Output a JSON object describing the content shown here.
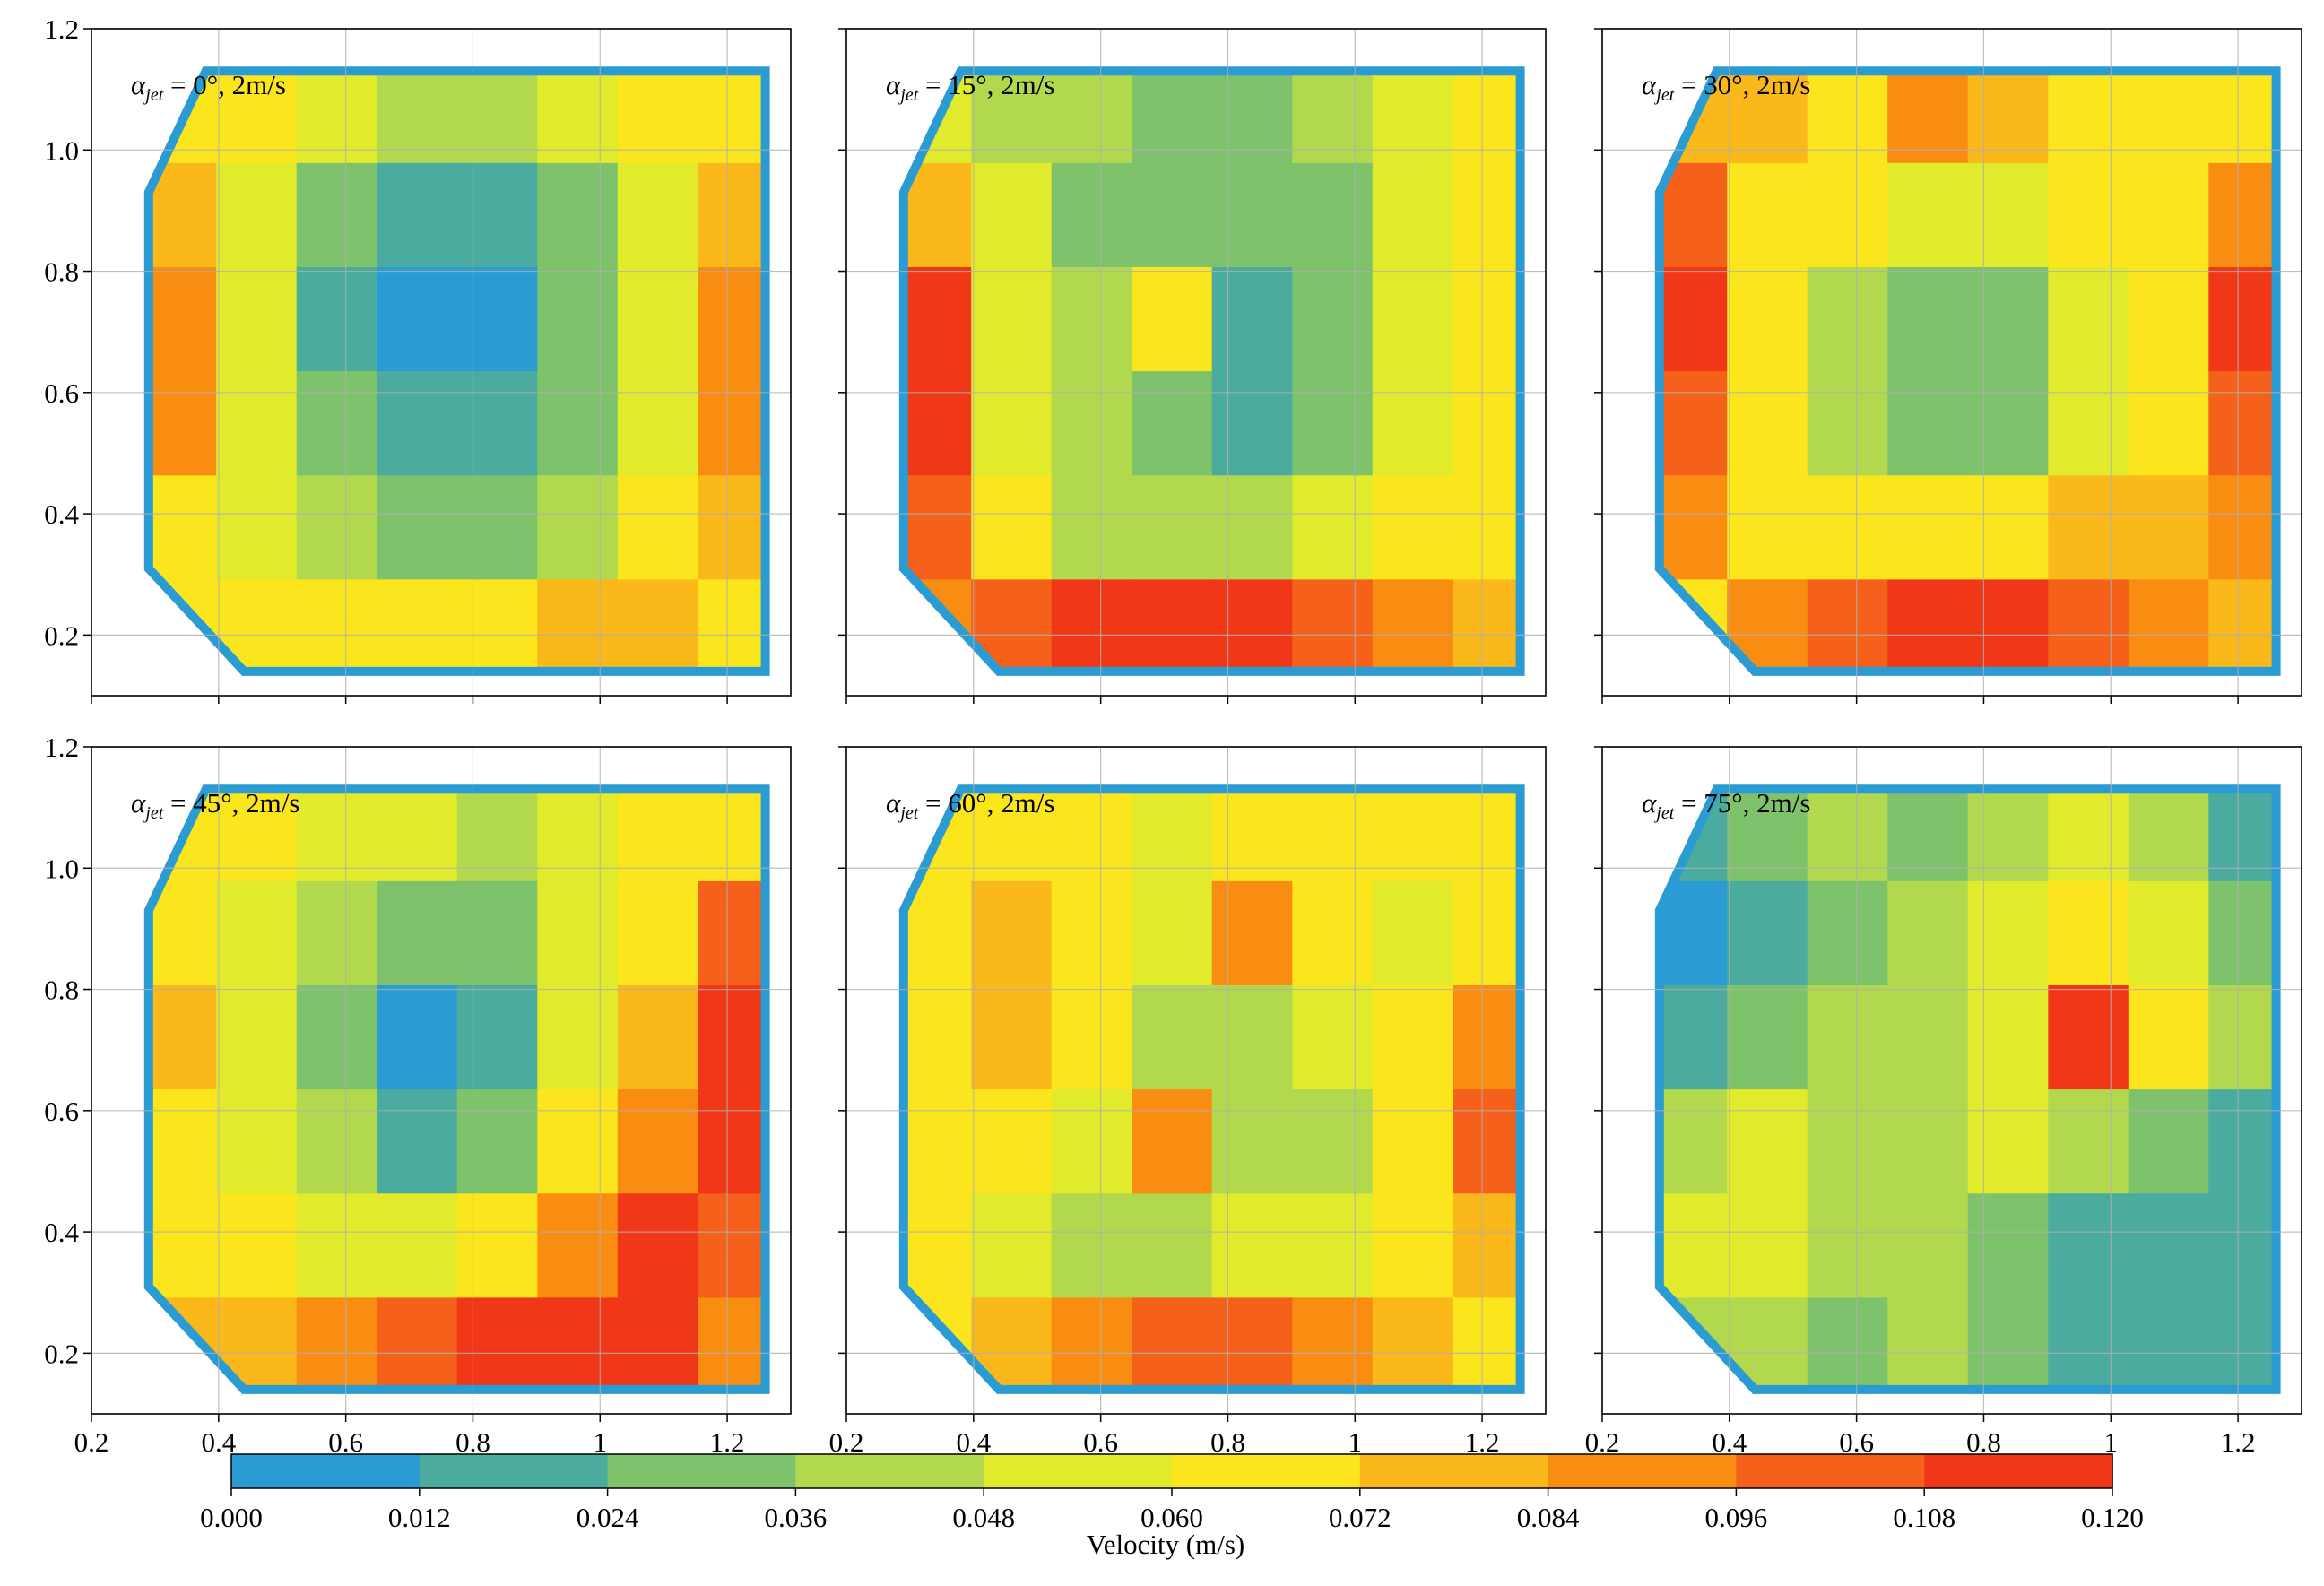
{
  "figure": {
    "colorbar": {
      "label": "Velocity (m/s)",
      "ticks": [
        "0.000",
        "0.012",
        "0.024",
        "0.036",
        "0.048",
        "0.060",
        "0.072",
        "0.084",
        "0.096",
        "0.108",
        "0.120"
      ],
      "range": [
        0.0,
        0.12
      ],
      "colors": [
        "#2b9bd3",
        "#4cab9f",
        "#7ec36c",
        "#b2d84d",
        "#e2ea2c",
        "#fbe51c",
        "#fbb81a",
        "#f98d12",
        "#f5601a",
        "#f03818"
      ]
    }
  },
  "chart_data": [
    {
      "type": "heatmap",
      "annotation_prefix": "α",
      "annotation_sub": "jet",
      "annotation": " = 0°, 2m/s",
      "xlim": [
        0.2,
        1.3
      ],
      "ylim": [
        0.1,
        1.2
      ],
      "xticks": [
        "0.2",
        "0.4",
        "0.6",
        "0.8",
        "1",
        "1.2"
      ],
      "yticks": [
        "0.2",
        "0.4",
        "0.6",
        "0.8",
        "1.0",
        "1.2"
      ],
      "show_xticklabels": false,
      "show_yticklabels": true,
      "grid": true,
      "velocity_m_s": [
        [
          0.07,
          0.06,
          0.05,
          0.04,
          0.04,
          0.05,
          0.06,
          0.07
        ],
        [
          0.08,
          0.05,
          0.03,
          0.02,
          0.02,
          0.03,
          0.05,
          0.08
        ],
        [
          0.09,
          0.05,
          0.02,
          0.01,
          0.01,
          0.03,
          0.05,
          0.09
        ],
        [
          0.09,
          0.05,
          0.03,
          0.02,
          0.02,
          0.03,
          0.05,
          0.09
        ],
        [
          0.07,
          0.05,
          0.04,
          0.03,
          0.03,
          0.04,
          0.06,
          0.08
        ],
        [
          0.06,
          0.06,
          0.06,
          0.07,
          0.07,
          0.08,
          0.08,
          0.07
        ]
      ]
    },
    {
      "type": "heatmap",
      "annotation_prefix": "α",
      "annotation_sub": "jet",
      "annotation": " = 15°, 2m/s",
      "xlim": [
        0.2,
        1.3
      ],
      "ylim": [
        0.1,
        1.2
      ],
      "xticks": [
        "0.2",
        "0.4",
        "0.6",
        "0.8",
        "1",
        "1.2"
      ],
      "yticks": [
        "0.2",
        "0.4",
        "0.6",
        "0.8",
        "1.0",
        "1.2"
      ],
      "show_xticklabels": false,
      "show_yticklabels": false,
      "grid": true,
      "velocity_m_s": [
        [
          0.05,
          0.04,
          0.04,
          0.03,
          0.03,
          0.04,
          0.05,
          0.06
        ],
        [
          0.08,
          0.05,
          0.03,
          0.03,
          0.03,
          0.03,
          0.05,
          0.06
        ],
        [
          0.11,
          0.05,
          0.04,
          0.06,
          0.02,
          0.03,
          0.05,
          0.07
        ],
        [
          0.11,
          0.05,
          0.04,
          0.03,
          0.02,
          0.03,
          0.05,
          0.07
        ],
        [
          0.1,
          0.06,
          0.04,
          0.04,
          0.04,
          0.05,
          0.06,
          0.06
        ],
        [
          0.09,
          0.1,
          0.11,
          0.12,
          0.12,
          0.1,
          0.09,
          0.08
        ]
      ]
    },
    {
      "type": "heatmap",
      "annotation_prefix": "α",
      "annotation_sub": "jet",
      "annotation": " = 30°, 2m/s",
      "xlim": [
        0.2,
        1.3
      ],
      "ylim": [
        0.1,
        1.2
      ],
      "xticks": [
        "0.2",
        "0.4",
        "0.6",
        "0.8",
        "1",
        "1.2"
      ],
      "yticks": [
        "0.2",
        "0.4",
        "0.6",
        "0.8",
        "1.0",
        "1.2"
      ],
      "show_xticklabels": false,
      "show_yticklabels": false,
      "grid": true,
      "velocity_m_s": [
        [
          0.08,
          0.08,
          0.07,
          0.09,
          0.08,
          0.06,
          0.06,
          0.07
        ],
        [
          0.1,
          0.07,
          0.06,
          0.05,
          0.05,
          0.06,
          0.07,
          0.09
        ],
        [
          0.11,
          0.07,
          0.04,
          0.03,
          0.03,
          0.05,
          0.07,
          0.11
        ],
        [
          0.1,
          0.07,
          0.04,
          0.03,
          0.03,
          0.05,
          0.07,
          0.1
        ],
        [
          0.09,
          0.07,
          0.06,
          0.06,
          0.07,
          0.08,
          0.08,
          0.09
        ],
        [
          0.07,
          0.09,
          0.1,
          0.11,
          0.11,
          0.1,
          0.09,
          0.08
        ]
      ]
    },
    {
      "type": "heatmap",
      "annotation_prefix": "α",
      "annotation_sub": "jet",
      "annotation": " = 45°, 2m/s",
      "xlim": [
        0.2,
        1.3
      ],
      "ylim": [
        0.1,
        1.2
      ],
      "xticks": [
        "0.2",
        "0.4",
        "0.6",
        "0.8",
        "1",
        "1.2"
      ],
      "yticks": [
        "0.2",
        "0.4",
        "0.6",
        "0.8",
        "1.0",
        "1.2"
      ],
      "show_xticklabels": true,
      "show_yticklabels": true,
      "grid": true,
      "velocity_m_s": [
        [
          0.06,
          0.06,
          0.05,
          0.05,
          0.04,
          0.05,
          0.06,
          0.07
        ],
        [
          0.06,
          0.05,
          0.04,
          0.03,
          0.03,
          0.05,
          0.07,
          0.1
        ],
        [
          0.08,
          0.05,
          0.03,
          0.01,
          0.02,
          0.05,
          0.08,
          0.11
        ],
        [
          0.07,
          0.05,
          0.04,
          0.02,
          0.03,
          0.06,
          0.09,
          0.11
        ],
        [
          0.07,
          0.06,
          0.05,
          0.05,
          0.06,
          0.09,
          0.11,
          0.1
        ],
        [
          0.08,
          0.08,
          0.09,
          0.1,
          0.11,
          0.12,
          0.11,
          0.09
        ]
      ]
    },
    {
      "type": "heatmap",
      "annotation_prefix": "α",
      "annotation_sub": "jet",
      "annotation": " = 60°, 2m/s",
      "xlim": [
        0.2,
        1.3
      ],
      "ylim": [
        0.1,
        1.2
      ],
      "xticks": [
        "0.2",
        "0.4",
        "0.6",
        "0.8",
        "1",
        "1.2"
      ],
      "yticks": [
        "0.2",
        "0.4",
        "0.6",
        "0.8",
        "1.0",
        "1.2"
      ],
      "show_xticklabels": true,
      "show_yticklabels": false,
      "grid": true,
      "velocity_m_s": [
        [
          0.06,
          0.07,
          0.06,
          0.05,
          0.06,
          0.07,
          0.06,
          0.06
        ],
        [
          0.07,
          0.08,
          0.06,
          0.05,
          0.09,
          0.06,
          0.05,
          0.06
        ],
        [
          0.07,
          0.08,
          0.06,
          0.04,
          0.04,
          0.05,
          0.07,
          0.09
        ],
        [
          0.06,
          0.07,
          0.05,
          0.09,
          0.04,
          0.04,
          0.07,
          0.1
        ],
        [
          0.06,
          0.05,
          0.04,
          0.04,
          0.05,
          0.05,
          0.07,
          0.08
        ],
        [
          0.07,
          0.08,
          0.09,
          0.1,
          0.1,
          0.09,
          0.08,
          0.07
        ]
      ]
    },
    {
      "type": "heatmap",
      "annotation_prefix": "α",
      "annotation_sub": "jet",
      "annotation": " = 75°, 2m/s",
      "xlim": [
        0.2,
        1.3
      ],
      "ylim": [
        0.1,
        1.2
      ],
      "xticks": [
        "0.2",
        "0.4",
        "0.6",
        "0.8",
        "1",
        "1.2"
      ],
      "yticks": [
        "0.2",
        "0.4",
        "0.6",
        "0.8",
        "1.0",
        "1.2"
      ],
      "show_xticklabels": true,
      "show_yticklabels": false,
      "grid": true,
      "velocity_m_s": [
        [
          0.02,
          0.03,
          0.04,
          0.03,
          0.04,
          0.05,
          0.04,
          0.02
        ],
        [
          0.01,
          0.02,
          0.03,
          0.04,
          0.05,
          0.06,
          0.05,
          0.03
        ],
        [
          0.02,
          0.03,
          0.04,
          0.04,
          0.05,
          0.11,
          0.06,
          0.04
        ],
        [
          0.04,
          0.05,
          0.04,
          0.04,
          0.05,
          0.04,
          0.03,
          0.02
        ],
        [
          0.05,
          0.05,
          0.04,
          0.04,
          0.03,
          0.02,
          0.02,
          0.02
        ],
        [
          0.04,
          0.04,
          0.03,
          0.04,
          0.03,
          0.02,
          0.02,
          0.02
        ]
      ]
    }
  ]
}
